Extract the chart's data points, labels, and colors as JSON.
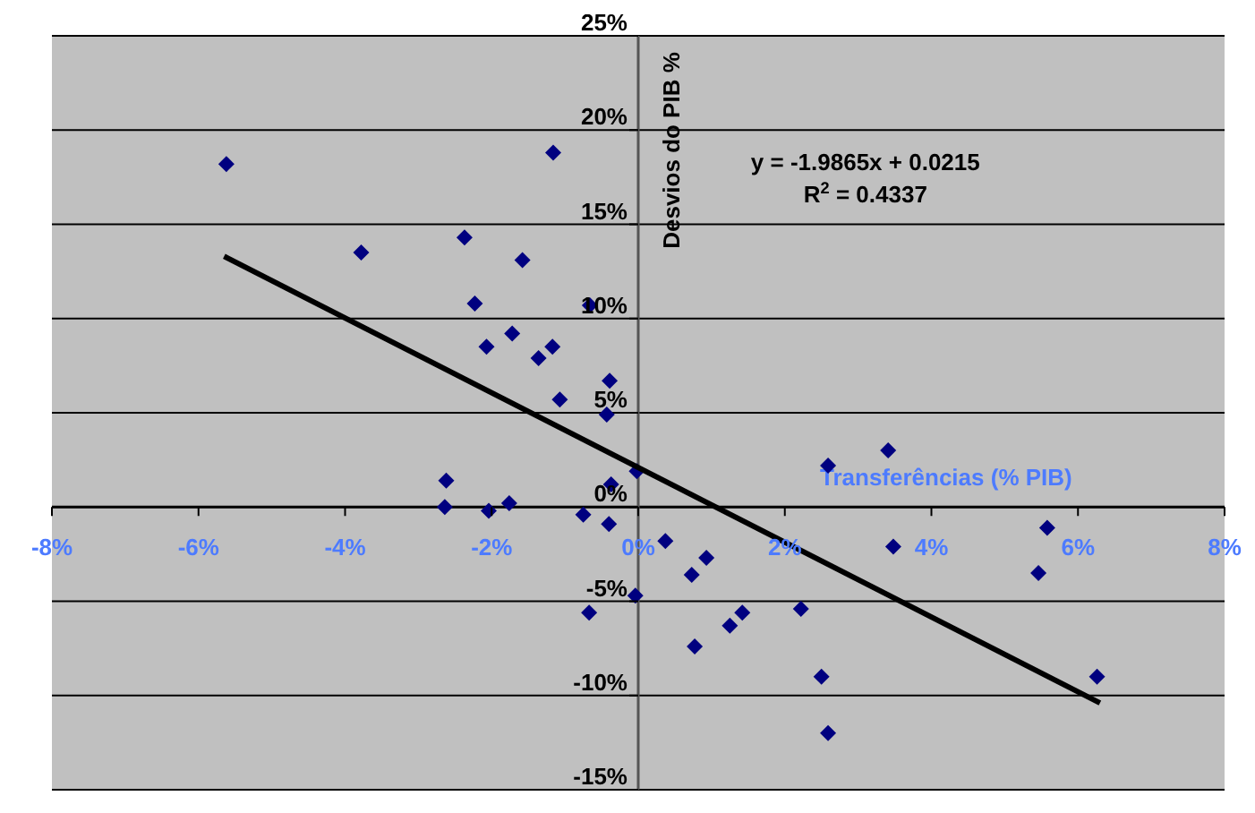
{
  "chart_data": {
    "type": "scatter",
    "xlabel": "Transferências (% PIB)",
    "ylabel": "Desvios do PIB %",
    "annotations": [
      "y = -1.9865x + 0.0215",
      "R$^{2}$ = 0.4337"
    ],
    "series": [
      {
        "type": "scatter",
        "color": "#000080",
        "marker": "diamond",
        "x": [
          -5.62,
          -3.78,
          -2.37,
          -1.16,
          -1.58,
          -2.23,
          -0.66,
          -2.07,
          -1.72,
          -1.17,
          -1.36,
          -0.39,
          -1.07,
          -0.43,
          -2.62,
          -2.64,
          -2.04,
          -1.76,
          -0.75,
          -0.37,
          -0.4,
          -0.02,
          -0.04,
          -0.67,
          0.37,
          0.93,
          0.73,
          0.77,
          1.42,
          1.25,
          2.22,
          2.59,
          3.41,
          3.48,
          2.5,
          2.59,
          5.58,
          5.46,
          6.26
        ],
        "values": [
          18.2,
          13.5,
          14.3,
          18.8,
          13.1,
          10.8,
          10.7,
          8.5,
          9.2,
          8.5,
          7.9,
          6.7,
          5.7,
          4.9,
          1.4,
          0.0,
          -0.2,
          0.2,
          -0.4,
          1.2,
          -0.9,
          1.9,
          -4.7,
          -5.6,
          -1.8,
          -2.7,
          -3.6,
          -7.4,
          -5.6,
          -6.3,
          -5.4,
          2.2,
          3.0,
          -2.1,
          -9.0,
          -12.0,
          -1.1,
          -3.5,
          -9.0
        ]
      },
      {
        "type": "line",
        "color": "#000000",
        "marker": "none",
        "x": [
          -5.65,
          6.3
        ],
        "values": [
          13.3,
          -10.4
        ]
      }
    ],
    "xlim": [
      -8,
      8
    ],
    "xticks": [
      {
        "value": -8,
        "label": "-8%"
      },
      {
        "value": -6,
        "label": "-6%"
      },
      {
        "value": -4,
        "label": "-4%"
      },
      {
        "value": -2,
        "label": "-2%"
      },
      {
        "value": 0,
        "label": "0%"
      },
      {
        "value": 2,
        "label": "2%"
      },
      {
        "value": 4,
        "label": "4%"
      },
      {
        "value": 6,
        "label": "6%"
      },
      {
        "value": 8,
        "label": "8%"
      }
    ],
    "ylim": [
      -15,
      25
    ],
    "yticks": [
      {
        "value": -15,
        "label": "-15%"
      },
      {
        "value": -10,
        "label": "-10%"
      },
      {
        "value": -5,
        "label": "-5%"
      },
      {
        "value": 0,
        "label": "0%"
      },
      {
        "value": 5,
        "label": "5%"
      },
      {
        "value": 10,
        "label": "10%"
      },
      {
        "value": 15,
        "label": "15%"
      },
      {
        "value": 20,
        "label": "20%"
      },
      {
        "value": 25,
        "label": "25%"
      }
    ],
    "grid": "y",
    "legend": false
  }
}
